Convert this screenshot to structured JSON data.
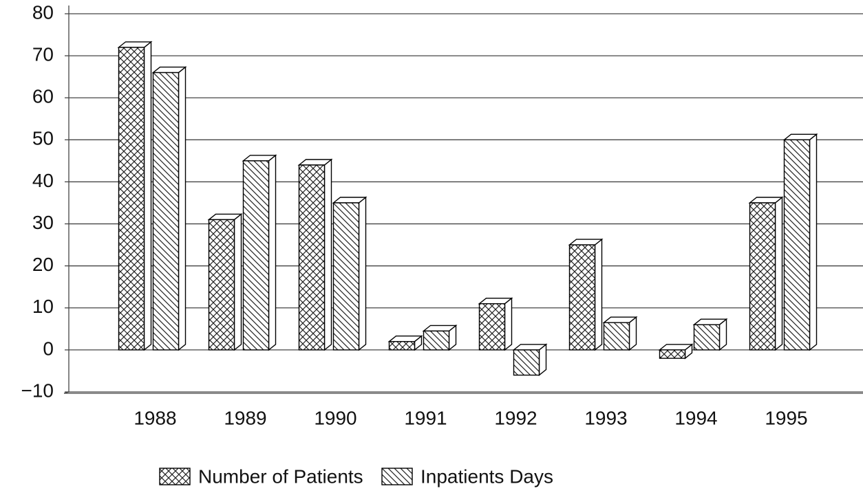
{
  "chart_data": {
    "type": "bar3d",
    "categories": [
      "1988",
      "1989",
      "1990",
      "1991",
      "1992",
      "1993",
      "1994",
      "1995"
    ],
    "series": [
      {
        "name": "Number of Patients",
        "color": "#000000",
        "pattern": "crosshatch",
        "values": [
          72,
          31,
          44,
          2,
          11,
          25,
          -2,
          35
        ]
      },
      {
        "name": "Inpatients Days",
        "color": "#000000",
        "pattern": "diagonal",
        "values": [
          66,
          45,
          35,
          4.5,
          -6,
          6.5,
          6,
          50
        ]
      }
    ],
    "ylim": [
      -10,
      80
    ],
    "yticks": [
      {
        "value": -10,
        "label": "−10"
      },
      0,
      10,
      20,
      30,
      40,
      50,
      60,
      70,
      80
    ],
    "grid": true,
    "legend": "bottom"
  }
}
